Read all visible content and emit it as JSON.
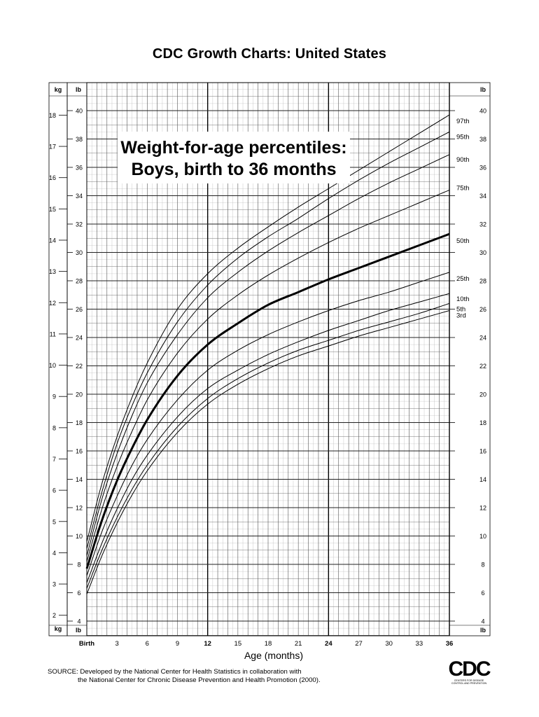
{
  "page_title": "CDC Growth Charts: United States",
  "chart_data": {
    "type": "line",
    "title": "Weight-for-age percentiles:",
    "subtitle": "Boys, birth to 36 months",
    "xlabel": "Age (months)",
    "xlim": [
      0,
      36
    ],
    "ylim_lb": [
      4,
      42
    ],
    "ylim_kg": [
      2,
      19
    ],
    "grid": true,
    "x_ticks": [
      "Birth",
      "3",
      "6",
      "9",
      "12",
      "15",
      "18",
      "21",
      "24",
      "27",
      "30",
      "33",
      "36"
    ],
    "y_ticks_lb": [
      "4",
      "6",
      "8",
      "10",
      "12",
      "14",
      "16",
      "18",
      "20",
      "22",
      "24",
      "26",
      "28",
      "30",
      "32",
      "34",
      "36",
      "38",
      "40"
    ],
    "y_ticks_kg": [
      "2",
      "3",
      "4",
      "5",
      "6",
      "7",
      "8",
      "9",
      "10",
      "11",
      "12",
      "13",
      "14",
      "15",
      "16",
      "17",
      "18"
    ],
    "unit_label_kg": "kg",
    "unit_label_lb": "lb",
    "x": [
      0,
      1.5,
      3,
      4.5,
      6,
      9,
      12,
      15,
      18,
      21,
      24,
      27,
      30,
      33,
      36
    ],
    "series": [
      {
        "name": "97th",
        "values": [
          9.6,
          13.7,
          17.0,
          19.8,
          22.2,
          26.0,
          28.5,
          30.3,
          31.8,
          33.2,
          34.5,
          35.8,
          37.1,
          38.4,
          39.7
        ]
      },
      {
        "name": "95th",
        "values": [
          9.1,
          13.1,
          16.5,
          19.2,
          21.5,
          25.1,
          27.7,
          29.6,
          31.1,
          32.4,
          33.8,
          35.1,
          36.3,
          37.4,
          38.5
        ]
      },
      {
        "name": "90th",
        "values": [
          8.6,
          12.6,
          15.8,
          18.5,
          20.8,
          24.2,
          26.8,
          28.6,
          30.1,
          31.4,
          32.6,
          33.8,
          34.9,
          35.9,
          36.9
        ]
      },
      {
        "name": "75th",
        "values": [
          8.2,
          11.9,
          14.9,
          17.4,
          19.6,
          22.9,
          25.3,
          27.0,
          28.4,
          29.6,
          30.7,
          31.7,
          32.6,
          33.5,
          34.4
        ]
      },
      {
        "name": "50th",
        "values": [
          7.7,
          11.1,
          13.9,
          16.2,
          18.2,
          21.3,
          23.5,
          25.0,
          26.3,
          27.2,
          28.1,
          28.9,
          29.7,
          30.5,
          31.3
        ]
      },
      {
        "name": "25th",
        "values": [
          7.2,
          10.3,
          12.8,
          15.0,
          16.8,
          19.6,
          21.7,
          23.1,
          24.2,
          25.1,
          25.9,
          26.6,
          27.2,
          27.9,
          28.6
        ]
      },
      {
        "name": "10th",
        "values": [
          6.7,
          9.5,
          11.9,
          14.0,
          15.7,
          18.4,
          20.4,
          21.7,
          22.8,
          23.7,
          24.5,
          25.2,
          25.9,
          26.5,
          27.1
        ]
      },
      {
        "name": "5th",
        "values": [
          6.3,
          9.0,
          11.3,
          13.3,
          15.0,
          17.7,
          19.7,
          21.1,
          22.2,
          23.1,
          23.8,
          24.5,
          25.1,
          25.7,
          26.4
        ]
      },
      {
        "name": "3rd",
        "values": [
          5.9,
          8.6,
          10.9,
          12.9,
          14.6,
          17.3,
          19.3,
          20.7,
          21.8,
          22.7,
          23.4,
          24.1,
          24.7,
          25.3,
          25.9
        ]
      }
    ]
  },
  "source": {
    "line1": "SOURCE: Developed by the National Center for Health Statistics in collaboration with",
    "line2": "the National Center for Chronic Disease Prevention and Health Promotion (2000)."
  },
  "logo": {
    "mark": "CDC",
    "sub": "Centers for Disease Control and Prevention"
  }
}
